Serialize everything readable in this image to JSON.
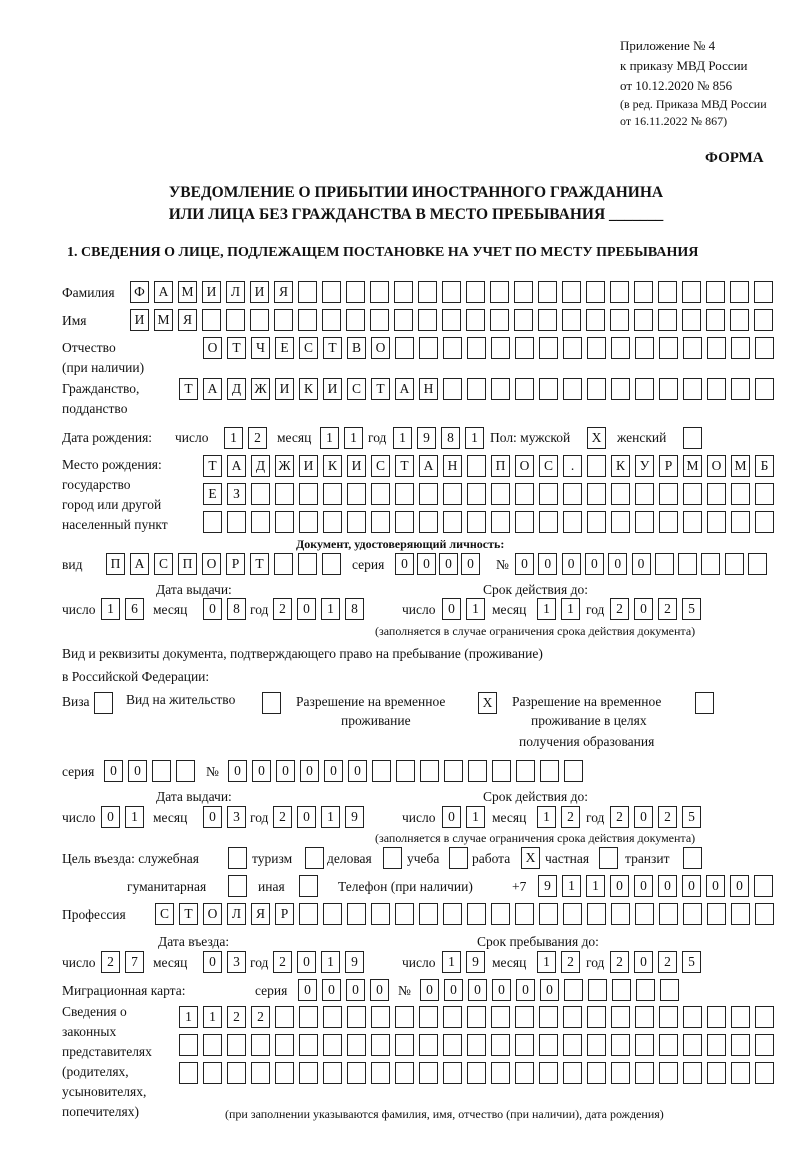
{
  "header": {
    "line1": "Приложение № 4",
    "line2": "к приказу МВД России",
    "line3": "от 10.12.2020 № 856",
    "line4": "(в ред. Приказа МВД России",
    "line5": "от 16.11.2022 № 867)",
    "forma": "ФОРМА"
  },
  "title": {
    "line1": "УВЕДОМЛЕНИЕ О ПРИБЫТИИ ИНОСТРАННОГО ГРАЖДАНИНА",
    "line2": "ИЛИ ЛИЦА БЕЗ ГРАЖДАНСТВА В МЕСТО ПРЕБЫВАНИЯ _______"
  },
  "section1": "1. СВЕДЕНИЯ О ЛИЦЕ, ПОДЛЕЖАЩЕМ ПОСТАНОВКЕ НА УЧЕТ ПО МЕСТУ ПРЕБЫВАНИЯ",
  "labels": {
    "surname": "Фамилия",
    "name": "Имя",
    "patronymic": "Отчество",
    "patronymic2": "(при наличии)",
    "citizenship": "Гражданство,",
    "citizenship2": "подданство",
    "dob": "Дата рождения:",
    "day": "число",
    "month": "месяц",
    "year": "год",
    "sex": "Пол: мужской",
    "female": "женский",
    "birthplace1": "Место рождения:",
    "birthplace2": "государство",
    "birthplace3": "город или другой",
    "birthplace4": "населенный пункт",
    "id_doc": "Документ, удостоверяющий личность:",
    "kind": "вид",
    "series": "серия",
    "number": "№",
    "issue_date": "Дата выдачи:",
    "valid_until": "Срок действия до:",
    "validity_note": "(заполняется в случае ограничения срока действия документа)",
    "right_doc1": "Вид и реквизиты документа, подтверждающего право на пребывание (проживание)",
    "right_doc2": "в Российской Федерации:",
    "visa": "Виза",
    "residence": "Вид на жительство",
    "temp_res1": "Разрешение на временное",
    "temp_res2": "проживание",
    "temp_edu1": "Разрешение на временное",
    "temp_edu2": "проживание в целях",
    "temp_edu3": "получения образования",
    "purpose": "Цель въезда: служебная",
    "tourism": "туризм",
    "business": "деловая",
    "study": "учеба",
    "work": "работа",
    "private": "частная",
    "transit": "транзит",
    "humanitarian": "гуманитарная",
    "other": "иная",
    "phone": "Телефон (при наличии)",
    "phone_prefix": "+7",
    "profession": "Профессия",
    "entry_date": "Дата въезда:",
    "stay_until": "Срок пребывания до:",
    "migration_card": "Миграционная карта:",
    "reps1": "Сведения о",
    "reps2": "законных",
    "reps3": "представителях",
    "reps4": "(родителях,",
    "reps5": "усыновителях,",
    "reps6": "попечителях)",
    "reps_note": "(при заполнении указываются фамилия, имя, отчество (при наличии), дата рождения)"
  },
  "fields": {
    "surname": "ФАМИЛИЯ",
    "name": "ИМЯ",
    "patronymic": "ОТЧЕСТВО",
    "citizenship": "ТАДЖИКИСТАН",
    "dob_day": "12",
    "dob_month": "11",
    "dob_year": "1981",
    "sex_male": "X",
    "sex_female": "",
    "birthplace_1": "ТАДЖИКИСТАН ПОС. КУРМОМБ",
    "birthplace_2": "ЕЗ",
    "birthplace_3": "",
    "id_kind": "ПАСПОРТ",
    "id_series": "0000",
    "id_number": "000000",
    "id_issue_day": "16",
    "id_issue_month": "08",
    "id_issue_year": "2018",
    "id_valid_day": "01",
    "id_valid_month": "11",
    "id_valid_year": "2025",
    "visa": "",
    "residence": "",
    "temp_res": "X",
    "temp_edu": "",
    "rd_series": "00",
    "rd_number": "000000",
    "rd_issue_day": "01",
    "rd_issue_month": "03",
    "rd_issue_year": "2019",
    "rd_valid_day": "01",
    "rd_valid_month": "12",
    "rd_valid_year": "2025",
    "p_official": "",
    "p_tourism": "",
    "p_business": "",
    "p_study": "",
    "p_work": "X",
    "p_private": "",
    "p_transit": "",
    "p_humanitarian": "",
    "p_other": "",
    "phone": "911000000",
    "profession": "СТОЛЯР",
    "entry_day": "27",
    "entry_month": "03",
    "entry_year": "2019",
    "stay_day": "19",
    "stay_month": "12",
    "stay_year": "2025",
    "mc_series": "0000",
    "mc_number": "000000",
    "reps_1": "1122",
    "reps_2": "",
    "reps_3": ""
  }
}
